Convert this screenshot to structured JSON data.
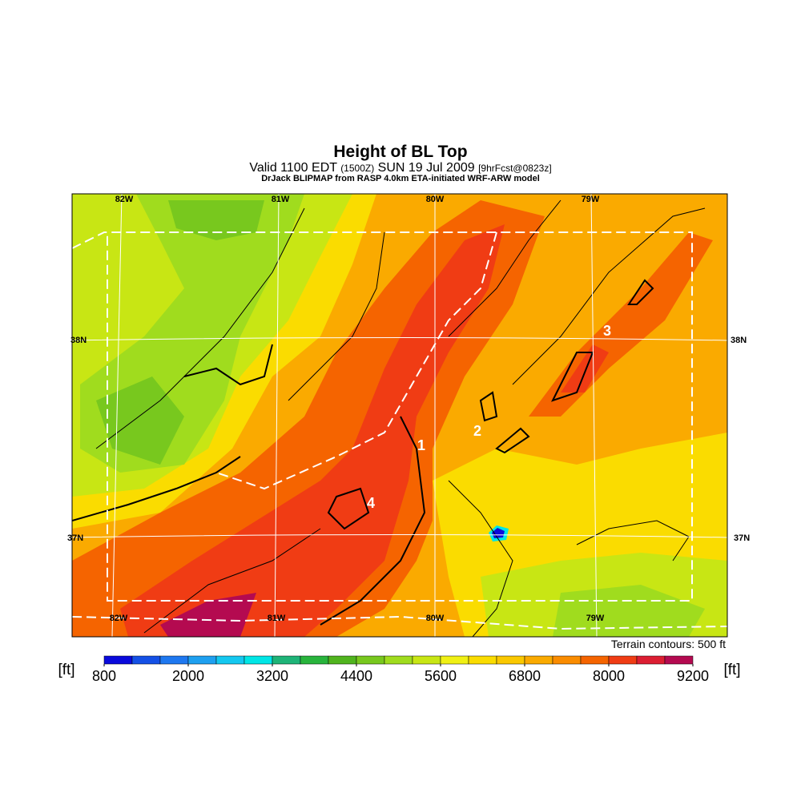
{
  "title": "Height of BL Top",
  "subtitle": [
    "Valid 1100 EDT",
    "(1500Z)",
    "SUN 19 Jul 2009",
    "[9hrFcst@0823z]"
  ],
  "credit": "DrJack BLIPMAP from RASP 4.0km ETA-initiated WRF-ARW model",
  "map": {
    "lon_labels_top": [
      "82W",
      "81W",
      "80W",
      "79W"
    ],
    "lon_labels_bottom": [
      "82W",
      "81W",
      "80W",
      "79W"
    ],
    "lat_labels_left": [
      "38N",
      "37N"
    ],
    "lat_labels_right": [
      "38N",
      "37N"
    ],
    "markers": [
      "1",
      "2",
      "3",
      "4"
    ],
    "note": "Terrain contours: 500 ft"
  },
  "colorbar": {
    "unit": "[ft]",
    "lim": [
      800,
      9200
    ],
    "ticks": [
      800,
      2000,
      3200,
      4400,
      5600,
      6800,
      8000,
      9200
    ],
    "colors": [
      "#0a0adc",
      "#1450e6",
      "#1e78f0",
      "#1ea0f0",
      "#14c8f0",
      "#00e6e6",
      "#1eb478",
      "#28b43c",
      "#50b41e",
      "#78c81e",
      "#a0dc1e",
      "#c8e614",
      "#f0f014",
      "#fadc00",
      "#fac800",
      "#faaa00",
      "#fa8c00",
      "#f56400",
      "#f03c14",
      "#dc1e32",
      "#b40a50"
    ]
  }
}
